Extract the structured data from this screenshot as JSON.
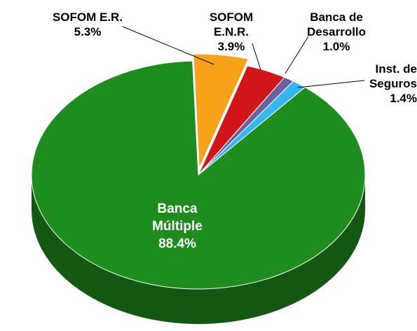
{
  "chart_data": {
    "type": "pie",
    "categories": [
      "SOFOM E.R.",
      "SOFOM E.N.R.",
      "Banca de Desarrollo",
      "Inst. de Seguros",
      "Banca Múltiple"
    ],
    "values": [
      5.3,
      3.9,
      1.0,
      1.4,
      88.4
    ],
    "value_labels": [
      "5.3%",
      "3.9%",
      "1.0%",
      "1.4%",
      "88.4%"
    ],
    "colors": [
      "#f7a21b",
      "#d0161b",
      "#6b5f9e",
      "#35b6ef",
      "#1e8c1e"
    ]
  }
}
